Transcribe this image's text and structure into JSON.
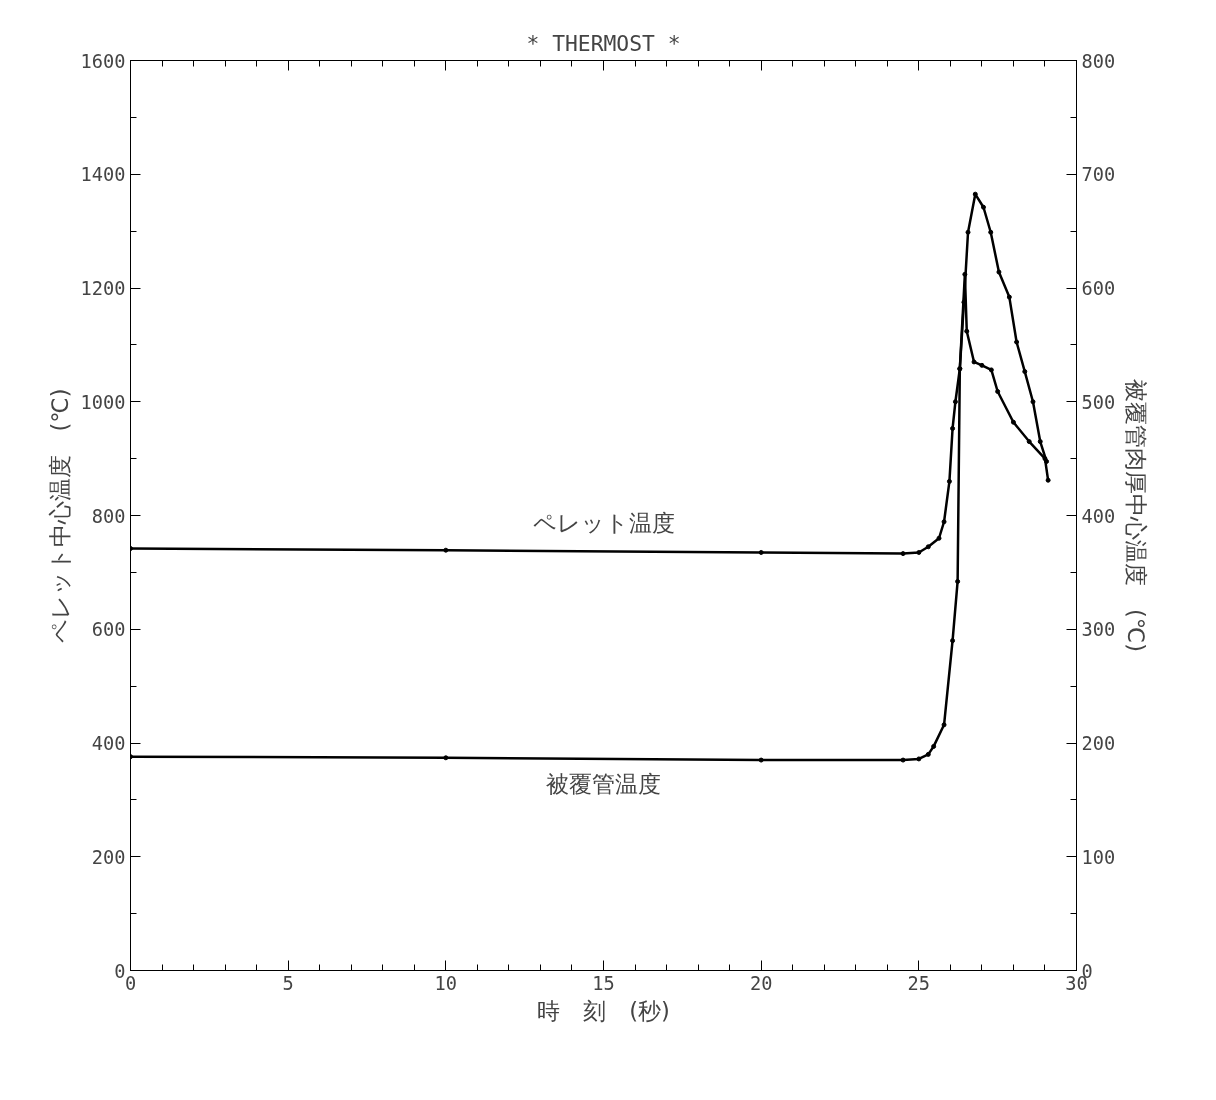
{
  "chart_data": {
    "type": "line",
    "title": "* THERMOST *",
    "xlabel": "時　刻　(秒)",
    "ylabel": "ペレット中心温度　(℃)",
    "y2label": "被覆管肉厚中心温度　(℃)",
    "xlim": [
      0,
      30
    ],
    "xticks": [
      0,
      5,
      10,
      15,
      20,
      25,
      30
    ],
    "ylim": [
      0,
      1600
    ],
    "yticks": [
      0,
      200,
      400,
      600,
      800,
      1000,
      1200,
      1400,
      1600
    ],
    "y2lim": [
      0,
      800
    ],
    "y2ticks": [
      0,
      100,
      200,
      300,
      400,
      500,
      600,
      700,
      800
    ],
    "grid": false,
    "marker": "circle",
    "line_style": "solid",
    "series": [
      {
        "name": "ペレット温度",
        "color": "#000000",
        "x": [
          0,
          10,
          20,
          24.5,
          25.0,
          25.3,
          25.64,
          25.8,
          25.97,
          26.07,
          26.16,
          26.3,
          26.43,
          26.56,
          26.79,
          27.05,
          27.28,
          27.54,
          27.87,
          28.1,
          28.36,
          28.62,
          28.85,
          29.05
        ],
        "values": [
          742,
          739,
          735,
          733,
          735,
          745,
          760,
          789,
          860,
          953,
          1000,
          1058,
          1175,
          1298,
          1365,
          1342,
          1298,
          1228,
          1184,
          1105,
          1053,
          1000,
          930,
          895
        ]
      },
      {
        "name": "被覆管温度",
        "color": "#000000",
        "axis": "y2",
        "x": [
          0,
          10,
          20,
          24.5,
          25.0,
          25.3,
          25.47,
          25.8,
          26.07,
          26.23,
          26.3,
          26.46,
          26.52,
          26.75,
          27.0,
          27.3,
          27.5,
          28.0,
          28.5,
          29.0,
          29.1
        ],
        "values": [
          188,
          187,
          185,
          185,
          186,
          190,
          197,
          216,
          290,
          342,
          529,
          612,
          562,
          535,
          532,
          528,
          509,
          482,
          465,
          450,
          431
        ]
      }
    ]
  }
}
